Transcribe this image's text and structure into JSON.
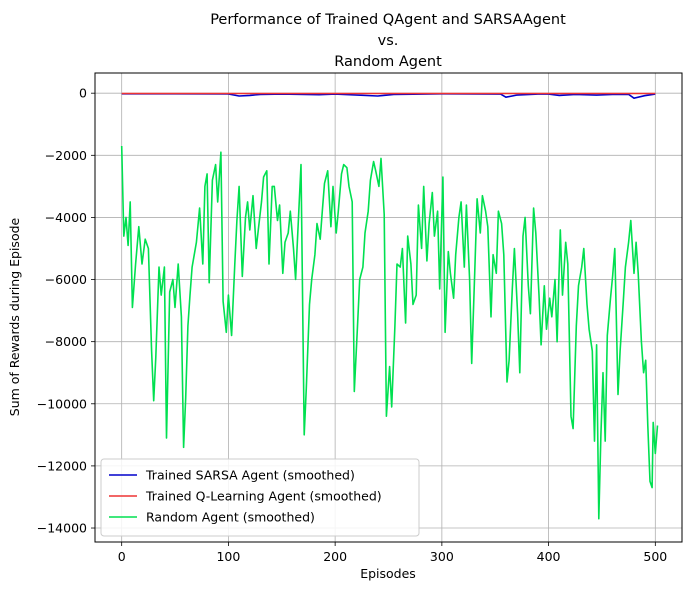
{
  "chart_data": {
    "type": "line",
    "title": [
      "Performance of Trained QAgent and SARSAAgent",
      "vs.",
      "Random Agent"
    ],
    "xlabel": "Episodes",
    "ylabel": "Sum of Rewards during Episode",
    "xlim": [
      -25,
      525
    ],
    "ylim": [
      -14450,
      650
    ],
    "xticks": [
      0,
      100,
      200,
      300,
      400,
      500
    ],
    "yticks": [
      0,
      -2000,
      -4000,
      -6000,
      -8000,
      -10000,
      -12000,
      -14000
    ],
    "grid": true,
    "legend_position": "lower left",
    "series": [
      {
        "name": "Trained SARSA Agent (smoothed)",
        "color": "#0000cc",
        "points": [
          [
            0,
            -20
          ],
          [
            50,
            -20
          ],
          [
            100,
            -25
          ],
          [
            110,
            -90
          ],
          [
            120,
            -70
          ],
          [
            130,
            -40
          ],
          [
            150,
            -30
          ],
          [
            185,
            -50
          ],
          [
            200,
            -30
          ],
          [
            240,
            -90
          ],
          [
            255,
            -40
          ],
          [
            300,
            -20
          ],
          [
            355,
            -30
          ],
          [
            360,
            -130
          ],
          [
            370,
            -60
          ],
          [
            390,
            -30
          ],
          [
            400,
            -30
          ],
          [
            410,
            -70
          ],
          [
            425,
            -40
          ],
          [
            445,
            -60
          ],
          [
            460,
            -40
          ],
          [
            475,
            -40
          ],
          [
            480,
            -160
          ],
          [
            490,
            -80
          ],
          [
            500,
            -30
          ]
        ]
      },
      {
        "name": "Trained Q-Learning Agent (smoothed)",
        "color": "#ee3333",
        "points": [
          [
            0,
            -10
          ],
          [
            100,
            -10
          ],
          [
            200,
            -10
          ],
          [
            300,
            -10
          ],
          [
            400,
            -10
          ],
          [
            500,
            -10
          ]
        ]
      },
      {
        "name": "Random Agent (smoothed)",
        "color": "#00e050",
        "points": [
          [
            0,
            -1700
          ],
          [
            2,
            -4600
          ],
          [
            4,
            -4000
          ],
          [
            6,
            -4900
          ],
          [
            8,
            -3500
          ],
          [
            10,
            -6900
          ],
          [
            13,
            -5500
          ],
          [
            16,
            -4300
          ],
          [
            19,
            -5500
          ],
          [
            22,
            -4700
          ],
          [
            25,
            -5000
          ],
          [
            28,
            -8300
          ],
          [
            30,
            -9900
          ],
          [
            32,
            -8500
          ],
          [
            35,
            -5600
          ],
          [
            37,
            -6500
          ],
          [
            40,
            -5600
          ],
          [
            42,
            -11100
          ],
          [
            45,
            -6400
          ],
          [
            48,
            -6000
          ],
          [
            50,
            -6900
          ],
          [
            53,
            -5500
          ],
          [
            56,
            -7200
          ],
          [
            58,
            -11400
          ],
          [
            60,
            -9800
          ],
          [
            62,
            -7500
          ],
          [
            64,
            -6500
          ],
          [
            66,
            -5600
          ],
          [
            70,
            -4800
          ],
          [
            73,
            -3700
          ],
          [
            76,
            -5500
          ],
          [
            78,
            -3000
          ],
          [
            80,
            -2600
          ],
          [
            82,
            -6100
          ],
          [
            85,
            -2800
          ],
          [
            88,
            -2300
          ],
          [
            90,
            -3500
          ],
          [
            93,
            -1900
          ],
          [
            95,
            -6700
          ],
          [
            98,
            -7700
          ],
          [
            100,
            -6500
          ],
          [
            103,
            -7800
          ],
          [
            106,
            -5500
          ],
          [
            108,
            -4100
          ],
          [
            110,
            -3000
          ],
          [
            113,
            -5900
          ],
          [
            116,
            -4000
          ],
          [
            118,
            -3500
          ],
          [
            120,
            -4400
          ],
          [
            123,
            -3300
          ],
          [
            126,
            -5000
          ],
          [
            128,
            -4400
          ],
          [
            131,
            -3500
          ],
          [
            133,
            -2700
          ],
          [
            136,
            -2500
          ],
          [
            138,
            -5500
          ],
          [
            141,
            -3000
          ],
          [
            143,
            -3000
          ],
          [
            146,
            -4100
          ],
          [
            148,
            -3600
          ],
          [
            151,
            -5800
          ],
          [
            153,
            -4800
          ],
          [
            156,
            -4500
          ],
          [
            158,
            -3800
          ],
          [
            161,
            -5000
          ],
          [
            163,
            -6000
          ],
          [
            166,
            -3800
          ],
          [
            168,
            -2300
          ],
          [
            171,
            -11000
          ],
          [
            173,
            -9500
          ],
          [
            176,
            -6800
          ],
          [
            178,
            -6000
          ],
          [
            181,
            -5200
          ],
          [
            183,
            -4200
          ],
          [
            186,
            -4700
          ],
          [
            188,
            -3800
          ],
          [
            190,
            -2900
          ],
          [
            193,
            -2500
          ],
          [
            196,
            -4300
          ],
          [
            198,
            -3000
          ],
          [
            201,
            -4500
          ],
          [
            203,
            -3800
          ],
          [
            206,
            -2600
          ],
          [
            208,
            -2300
          ],
          [
            211,
            -2400
          ],
          [
            213,
            -3000
          ],
          [
            216,
            -3500
          ],
          [
            218,
            -9600
          ],
          [
            221,
            -7500
          ],
          [
            223,
            -6000
          ],
          [
            226,
            -5600
          ],
          [
            228,
            -4500
          ],
          [
            231,
            -3800
          ],
          [
            233,
            -2800
          ],
          [
            236,
            -2200
          ],
          [
            238,
            -2500
          ],
          [
            241,
            -3000
          ],
          [
            243,
            -2100
          ],
          [
            246,
            -3900
          ],
          [
            248,
            -10400
          ],
          [
            251,
            -8800
          ],
          [
            253,
            -10100
          ],
          [
            256,
            -7500
          ],
          [
            258,
            -5500
          ],
          [
            261,
            -5600
          ],
          [
            263,
            -5000
          ],
          [
            266,
            -7400
          ],
          [
            268,
            -4600
          ],
          [
            271,
            -5500
          ],
          [
            273,
            -6800
          ],
          [
            276,
            -6500
          ],
          [
            278,
            -3600
          ],
          [
            281,
            -5000
          ],
          [
            283,
            -3000
          ],
          [
            286,
            -5400
          ],
          [
            288,
            -4200
          ],
          [
            291,
            -3200
          ],
          [
            293,
            -4600
          ],
          [
            296,
            -3800
          ],
          [
            298,
            -6300
          ],
          [
            301,
            -2700
          ],
          [
            303,
            -7700
          ],
          [
            306,
            -5100
          ],
          [
            308,
            -5800
          ],
          [
            311,
            -6600
          ],
          [
            313,
            -5200
          ],
          [
            316,
            -4000
          ],
          [
            318,
            -3500
          ],
          [
            321,
            -5600
          ],
          [
            323,
            -3600
          ],
          [
            326,
            -6000
          ],
          [
            328,
            -8700
          ],
          [
            331,
            -5600
          ],
          [
            333,
            -3400
          ],
          [
            336,
            -4500
          ],
          [
            338,
            -3300
          ],
          [
            341,
            -3800
          ],
          [
            343,
            -4300
          ],
          [
            346,
            -7200
          ],
          [
            348,
            -5200
          ],
          [
            351,
            -5800
          ],
          [
            353,
            -3800
          ],
          [
            356,
            -4200
          ],
          [
            358,
            -5200
          ],
          [
            361,
            -9300
          ],
          [
            363,
            -8600
          ],
          [
            366,
            -6300
          ],
          [
            368,
            -5000
          ],
          [
            371,
            -7100
          ],
          [
            373,
            -9000
          ],
          [
            376,
            -4600
          ],
          [
            378,
            -4000
          ],
          [
            381,
            -6200
          ],
          [
            383,
            -7100
          ],
          [
            386,
            -3700
          ],
          [
            388,
            -4500
          ],
          [
            391,
            -6500
          ],
          [
            393,
            -8100
          ],
          [
            396,
            -6200
          ],
          [
            398,
            -7600
          ],
          [
            401,
            -6600
          ],
          [
            403,
            -7200
          ],
          [
            406,
            -6000
          ],
          [
            408,
            -8000
          ],
          [
            411,
            -4400
          ],
          [
            413,
            -6500
          ],
          [
            416,
            -4800
          ],
          [
            418,
            -5500
          ],
          [
            421,
            -10400
          ],
          [
            423,
            -10800
          ],
          [
            426,
            -7500
          ],
          [
            428,
            -6200
          ],
          [
            431,
            -5600
          ],
          [
            433,
            -5000
          ],
          [
            436,
            -6800
          ],
          [
            438,
            -7600
          ],
          [
            441,
            -8300
          ],
          [
            443,
            -11200
          ],
          [
            445,
            -8100
          ],
          [
            447,
            -13700
          ],
          [
            449,
            -11000
          ],
          [
            451,
            -9000
          ],
          [
            453,
            -11200
          ],
          [
            455,
            -7800
          ],
          [
            458,
            -6600
          ],
          [
            460,
            -5900
          ],
          [
            462,
            -5000
          ],
          [
            465,
            -9700
          ],
          [
            467,
            -8300
          ],
          [
            470,
            -6700
          ],
          [
            472,
            -5600
          ],
          [
            475,
            -4800
          ],
          [
            477,
            -4100
          ],
          [
            480,
            -5800
          ],
          [
            482,
            -4800
          ],
          [
            484,
            -5800
          ],
          [
            487,
            -8000
          ],
          [
            489,
            -9000
          ],
          [
            491,
            -8600
          ],
          [
            493,
            -10700
          ],
          [
            495,
            -12500
          ],
          [
            497,
            -12700
          ],
          [
            498,
            -10600
          ],
          [
            500,
            -11600
          ],
          [
            502,
            -10700
          ]
        ]
      }
    ]
  }
}
